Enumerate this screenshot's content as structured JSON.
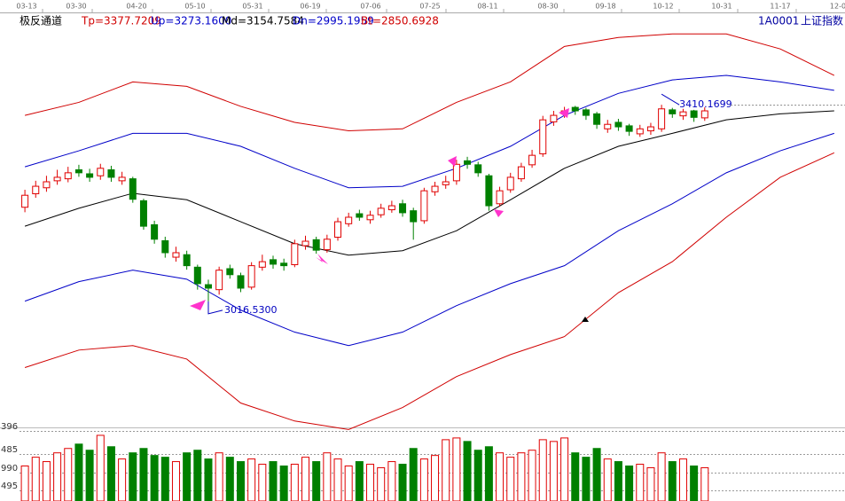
{
  "chart_data": {
    "type": "candlestick",
    "title": "极反通道",
    "symbol": "1A0001",
    "symbol_name": "上证指数",
    "date_labels": [
      "03-13",
      "03-30",
      "04-20",
      "05-10",
      "05-31",
      "06-19",
      "07-06",
      "07-25",
      "08-11",
      "08-30",
      "09-18",
      "10-12",
      "10-31",
      "11-17",
      "12-0"
    ],
    "xlim": [
      -0.5,
      76
    ],
    "ylim": [
      2750,
      3588
    ],
    "up_color": "#e00000",
    "down_color": "#008000",
    "candles": {
      "open": [
        3205,
        3232,
        3244,
        3258,
        3262,
        3280,
        3272,
        3268,
        3280,
        3258,
        3262,
        3218,
        3170,
        3138,
        3105,
        3110,
        3085,
        3050,
        3040,
        3082,
        3068,
        3045,
        3085,
        3100,
        3093,
        3090,
        3128,
        3140,
        3120,
        3145,
        3172,
        3192,
        3180,
        3190,
        3200,
        3212,
        3198,
        3178,
        3236,
        3250,
        3258,
        3298,
        3290,
        3268,
        3212,
        3240,
        3262,
        3290,
        3312,
        3376,
        3392,
        3405,
        3400,
        3392,
        3362,
        3375,
        3368,
        3352,
        3358,
        3362,
        3400,
        3388,
        3398,
        3384
      ],
      "high": [
        3240,
        3258,
        3268,
        3280,
        3286,
        3290,
        3282,
        3292,
        3288,
        3276,
        3266,
        3222,
        3178,
        3146,
        3126,
        3118,
        3090,
        3060,
        3086,
        3090,
        3074,
        3095,
        3110,
        3108,
        3102,
        3140,
        3148,
        3146,
        3150,
        3184,
        3194,
        3200,
        3198,
        3212,
        3218,
        3220,
        3204,
        3244,
        3256,
        3268,
        3300,
        3306,
        3296,
        3272,
        3246,
        3274,
        3294,
        3320,
        3388,
        3398,
        3406,
        3408,
        3404,
        3396,
        3380,
        3382,
        3372,
        3370,
        3374,
        3410.17,
        3404,
        3402,
        3400,
        3405
      ],
      "low": [
        3195,
        3224,
        3236,
        3250,
        3255,
        3266,
        3256,
        3260,
        3256,
        3250,
        3214,
        3160,
        3132,
        3104,
        3096,
        3080,
        3040,
        3016.53,
        3030,
        3062,
        3035,
        3040,
        3078,
        3082,
        3078,
        3085,
        3120,
        3112,
        3114,
        3138,
        3166,
        3178,
        3172,
        3184,
        3194,
        3186,
        3140,
        3172,
        3228,
        3242,
        3250,
        3282,
        3266,
        3198,
        3206,
        3234,
        3256,
        3284,
        3306,
        3368,
        3384,
        3390,
        3380,
        3362,
        3354,
        3358,
        3348,
        3346,
        3350,
        3356,
        3384,
        3380,
        3376,
        3378
      ],
      "close": [
        3229,
        3247,
        3256,
        3265,
        3274,
        3274,
        3265,
        3283,
        3265,
        3265,
        3221,
        3167,
        3141,
        3114,
        3114,
        3088,
        3052,
        3043,
        3079,
        3070,
        3043,
        3088,
        3096,
        3091,
        3088,
        3132,
        3137,
        3119,
        3141,
        3176,
        3185,
        3185,
        3189,
        3203,
        3208,
        3194,
        3176,
        3238,
        3247,
        3256,
        3291,
        3291,
        3274,
        3208,
        3238,
        3265,
        3286,
        3309,
        3380,
        3389,
        3398,
        3398,
        3389,
        3371,
        3371,
        3366,
        3357,
        3362,
        3366,
        3402,
        3392,
        3396,
        3385,
        3398
      ]
    },
    "lines": [
      {
        "label": "Tp=3377.7209",
        "color": "#d00000",
        "x": [
          0,
          5,
          10,
          15,
          20,
          25,
          30,
          35,
          40,
          45,
          50,
          55,
          60,
          65,
          70,
          75
        ],
        "values": [
          3389,
          3415,
          3456,
          3447,
          3407,
          3375,
          3358,
          3362,
          3415,
          3456,
          3527,
          3545,
          3552,
          3552,
          3522,
          3469
        ]
      },
      {
        "label": "Up=3273.1600",
        "color": "#0000c8",
        "x": [
          0,
          5,
          10,
          15,
          20,
          25,
          30,
          35,
          40,
          45,
          50,
          55,
          60,
          65,
          70,
          75
        ],
        "values": [
          3286,
          3318,
          3353,
          3353,
          3327,
          3283,
          3244,
          3247,
          3283,
          3327,
          3389,
          3433,
          3460,
          3469,
          3456,
          3439
        ]
      },
      {
        "label": "Md=3154.7584",
        "color": "#000000",
        "x": [
          0,
          5,
          10,
          15,
          20,
          25,
          30,
          35,
          40,
          45,
          50,
          55,
          60,
          65,
          70,
          75
        ],
        "values": [
          3167,
          3203,
          3233,
          3220,
          3176,
          3132,
          3109,
          3118,
          3158,
          3220,
          3283,
          3327,
          3353,
          3380,
          3392,
          3398
        ]
      },
      {
        "label": "Dn=2995.1959",
        "color": "#0000c8",
        "x": [
          0,
          5,
          10,
          15,
          20,
          25,
          30,
          35,
          40,
          45,
          50,
          55,
          60,
          65,
          70,
          75
        ],
        "values": [
          3017,
          3056,
          3079,
          3061,
          2999,
          2955,
          2928,
          2955,
          3008,
          3052,
          3088,
          3158,
          3212,
          3274,
          3318,
          3353
        ]
      },
      {
        "label": "Bt=2850.6928",
        "color": "#d00000",
        "x": [
          0,
          5,
          10,
          15,
          20,
          25,
          30,
          35,
          40,
          45,
          50,
          55,
          60,
          65,
          70,
          75
        ],
        "values": [
          2884,
          2919,
          2928,
          2901,
          2813,
          2777,
          2760,
          2804,
          2866,
          2910,
          2946,
          3034,
          3096,
          3185,
          3265,
          3314
        ]
      }
    ],
    "low_label": "3016.5300",
    "high_label": "3410.1699",
    "volume": {
      "ylim": [
        0,
        80
      ],
      "axis_labels": [
        "396",
        "485",
        "990",
        "495"
      ],
      "values": [
        40,
        50,
        45,
        55,
        60,
        65,
        58,
        75,
        62,
        48,
        55,
        60,
        52,
        50,
        45,
        55,
        58,
        48,
        55,
        50,
        45,
        48,
        42,
        45,
        40,
        42,
        50,
        45,
        55,
        48,
        40,
        45,
        42,
        38,
        45,
        42,
        60,
        48,
        52,
        70,
        72,
        68,
        58,
        62,
        55,
        50,
        55,
        58,
        70,
        68,
        72,
        55,
        50,
        60,
        48,
        45,
        40,
        42,
        38,
        55,
        45,
        48,
        40,
        38
      ]
    }
  }
}
